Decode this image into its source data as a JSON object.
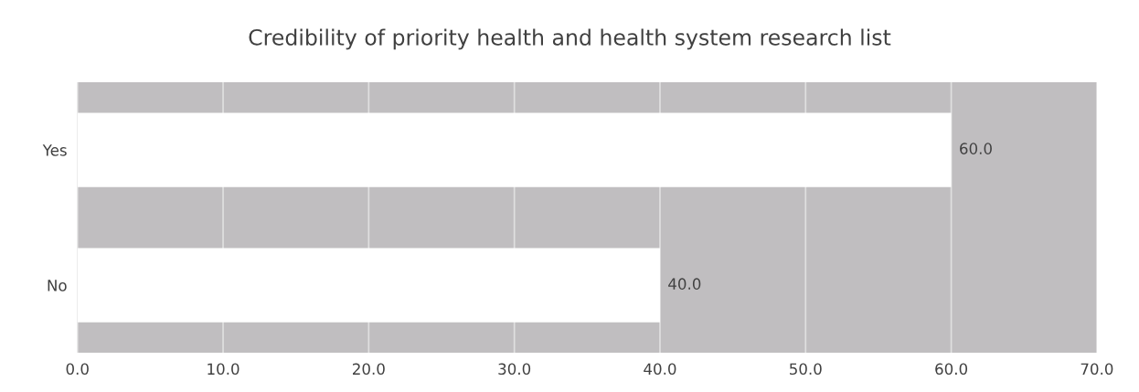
{
  "chart_data": {
    "type": "bar",
    "orientation": "horizontal",
    "title": "Credibility of priority health and health system research list",
    "categories": [
      "Yes",
      "No"
    ],
    "series": [
      {
        "color": "#ffffff",
        "values": [
          60,
          40
        ]
      }
    ],
    "value_labels": [
      "60.0",
      "40.0"
    ],
    "xlim": [
      0,
      70
    ],
    "xticks": [
      {
        "value": 0,
        "label": "0.0"
      },
      {
        "value": 10,
        "label": "10.0"
      },
      {
        "value": 20,
        "label": "20.0"
      },
      {
        "value": 30,
        "label": "30.0"
      },
      {
        "value": 40,
        "label": "40.0"
      },
      {
        "value": 50,
        "label": "50.0"
      },
      {
        "value": 60,
        "label": "60.0"
      },
      {
        "value": 70,
        "label": "70.0"
      }
    ],
    "grid": "x",
    "legend": false
  }
}
